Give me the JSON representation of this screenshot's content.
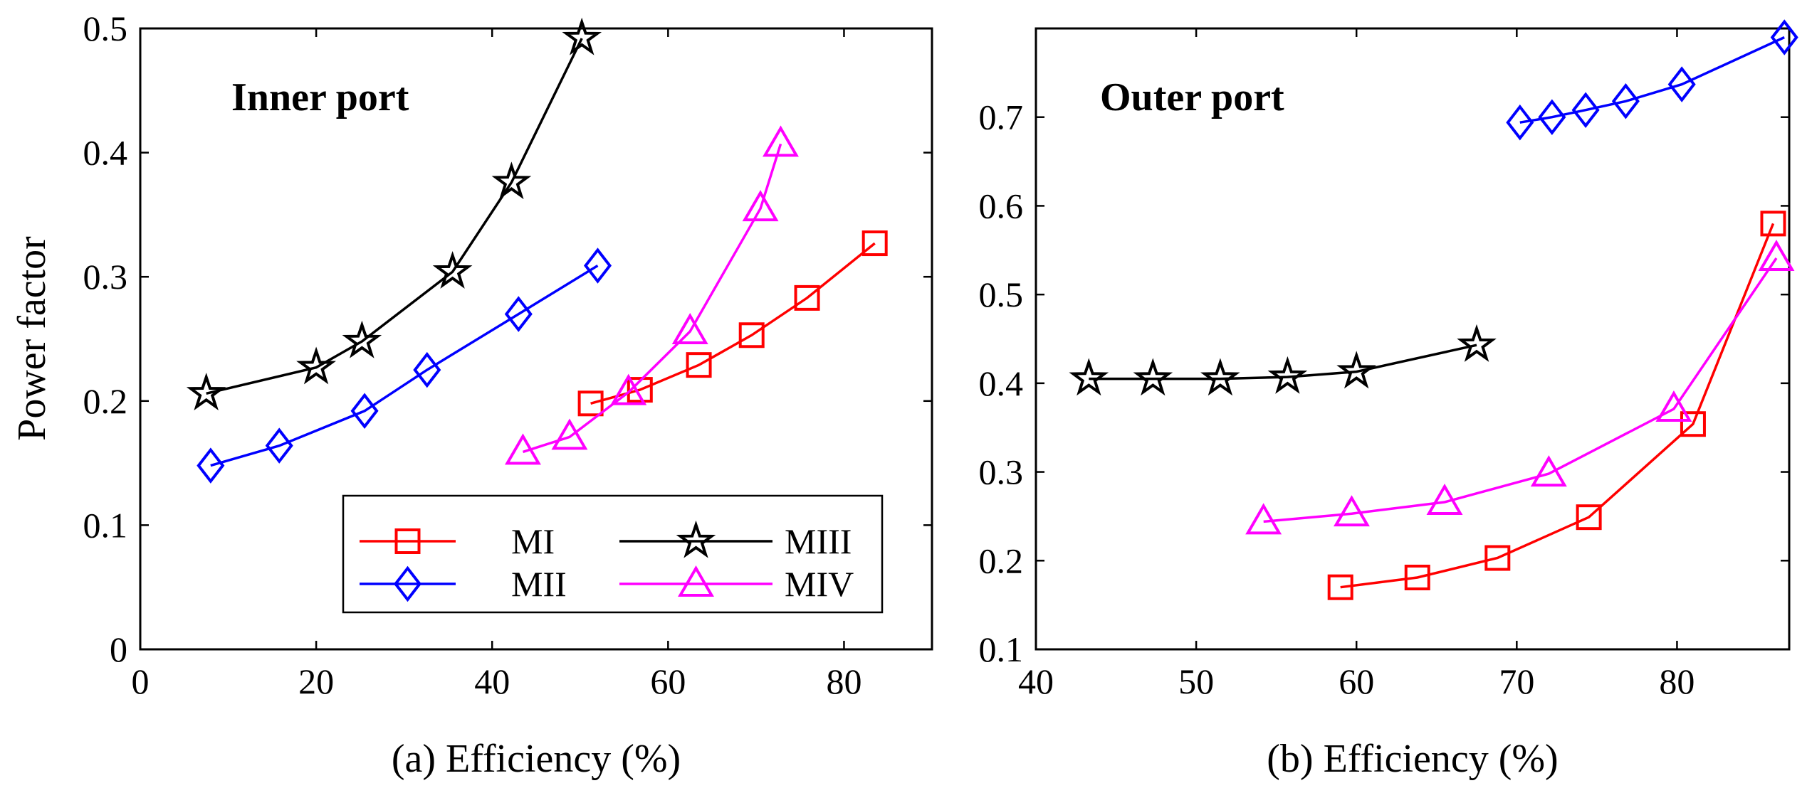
{
  "chart_data": [
    {
      "type": "line",
      "title": "Inner port",
      "xlabel": "(a) Efficiency (%)",
      "ylabel": "Power factor",
      "xlim": [
        0,
        90
      ],
      "ylim": [
        0,
        0.5
      ],
      "xticks": [
        "0",
        "20",
        "40",
        "60",
        "80"
      ],
      "xtick_values": [
        0,
        20,
        40,
        60,
        80
      ],
      "yticks": [
        "0",
        "0.1",
        "0.2",
        "0.3",
        "0.4",
        "0.5"
      ],
      "ytick_values": [
        0,
        0.1,
        0.2,
        0.3,
        0.4,
        0.5
      ],
      "grid": false,
      "legend": {
        "placement": "bottom-right",
        "columns": 2
      },
      "series": [
        {
          "name": "MI",
          "color": "#ff0000",
          "marker": "square",
          "points": [
            [
              51.2,
              0.198
            ],
            [
              56.8,
              0.209
            ],
            [
              63.5,
              0.229
            ],
            [
              69.5,
              0.253
            ],
            [
              75.8,
              0.283
            ],
            [
              83.5,
              0.327
            ]
          ]
        },
        {
          "name": "MII",
          "color": "#0000ff",
          "marker": "diamond",
          "points": [
            [
              8.0,
              0.148
            ],
            [
              15.8,
              0.164
            ],
            [
              25.5,
              0.192
            ],
            [
              32.6,
              0.225
            ],
            [
              43.0,
              0.27
            ],
            [
              52.0,
              0.309
            ]
          ]
        },
        {
          "name": "MIII",
          "color": "#000000",
          "marker": "star",
          "points": [
            [
              7.5,
              0.206
            ],
            [
              20.0,
              0.227
            ],
            [
              25.2,
              0.248
            ],
            [
              35.5,
              0.304
            ],
            [
              42.2,
              0.376
            ],
            [
              50.2,
              0.492
            ]
          ]
        },
        {
          "name": "MIV",
          "color": "#ff00ff",
          "marker": "triangle",
          "points": [
            [
              43.5,
              0.159
            ],
            [
              48.8,
              0.171
            ],
            [
              55.5,
              0.207
            ],
            [
              62.5,
              0.256
            ],
            [
              70.5,
              0.355
            ],
            [
              72.8,
              0.407
            ]
          ]
        }
      ]
    },
    {
      "type": "line",
      "title": "Outer port",
      "xlabel": "(b) Efficiency (%)",
      "ylabel": "",
      "xlim": [
        40,
        87
      ],
      "ylim": [
        0.1,
        0.8
      ],
      "xticks": [
        "40",
        "50",
        "60",
        "70",
        "80"
      ],
      "xtick_values": [
        40,
        50,
        60,
        70,
        80
      ],
      "yticks": [
        "0.1",
        "0.2",
        "0.3",
        "0.4",
        "0.5",
        "0.6",
        "0.7"
      ],
      "ytick_values": [
        0.1,
        0.2,
        0.3,
        0.4,
        0.5,
        0.6,
        0.7
      ],
      "grid": false,
      "series": [
        {
          "name": "MI",
          "color": "#ff0000",
          "marker": "square",
          "points": [
            [
              59.0,
              0.17
            ],
            [
              63.8,
              0.181
            ],
            [
              68.8,
              0.203
            ],
            [
              74.5,
              0.249
            ],
            [
              81.0,
              0.354
            ],
            [
              86.0,
              0.58
            ]
          ]
        },
        {
          "name": "MII",
          "color": "#0000ff",
          "marker": "diamond",
          "points": [
            [
              70.2,
              0.694
            ],
            [
              72.2,
              0.7
            ],
            [
              74.3,
              0.708
            ],
            [
              76.8,
              0.718
            ],
            [
              80.3,
              0.737
            ],
            [
              86.7,
              0.79
            ]
          ]
        },
        {
          "name": "MIII",
          "color": "#000000",
          "marker": "star",
          "points": [
            [
              43.3,
              0.405
            ],
            [
              47.3,
              0.405
            ],
            [
              51.5,
              0.405
            ],
            [
              55.7,
              0.407
            ],
            [
              60.0,
              0.413
            ],
            [
              67.5,
              0.443
            ]
          ]
        },
        {
          "name": "MIV",
          "color": "#ff00ff",
          "marker": "triangle",
          "points": [
            [
              54.2,
              0.244
            ],
            [
              59.7,
              0.253
            ],
            [
              65.5,
              0.266
            ],
            [
              72.0,
              0.298
            ],
            [
              79.8,
              0.371
            ],
            [
              86.2,
              0.541
            ]
          ]
        }
      ]
    }
  ]
}
